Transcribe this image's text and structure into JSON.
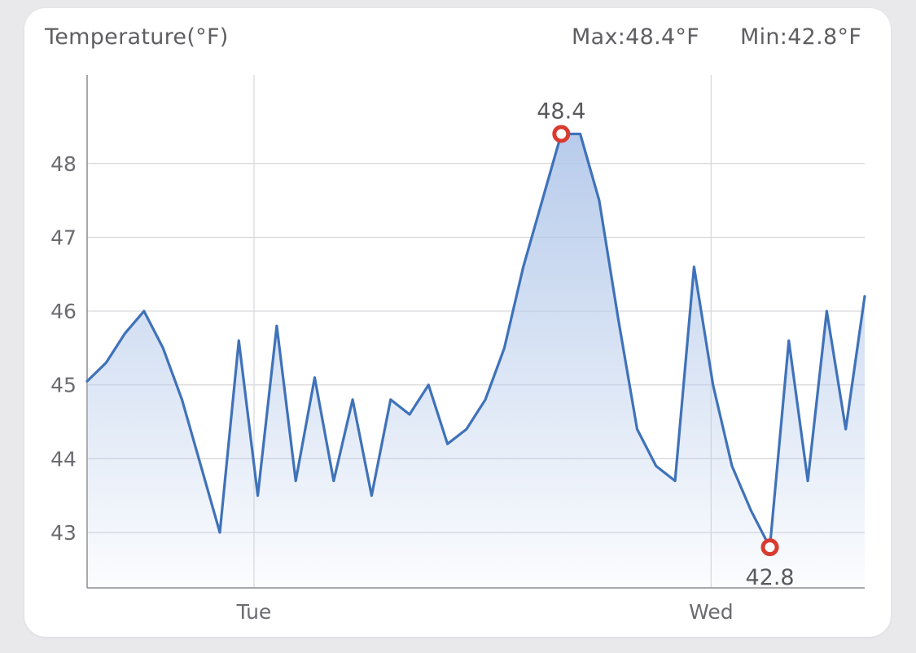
{
  "header": {
    "title": "Temperature(°F)",
    "max_label": "Max:48.4°F",
    "min_label": "Min:42.8°F"
  },
  "chart_data": {
    "type": "area",
    "ylabel": "Temperature(°F)",
    "ylim": [
      42.25,
      49.2
    ],
    "yticks": [
      43,
      44,
      45,
      46,
      47,
      48
    ],
    "xlim": [
      0,
      41
    ],
    "xticks": [
      {
        "x": 8.8,
        "label": "Tue"
      },
      {
        "x": 32.9,
        "label": "Wed"
      }
    ],
    "grid": true,
    "series": [
      {
        "x": [
          0,
          1,
          2,
          3,
          4,
          5,
          6,
          7,
          8,
          9,
          10,
          11,
          12,
          13,
          14,
          15,
          16,
          17,
          18,
          19,
          20,
          21,
          22,
          23,
          24,
          25,
          26,
          27,
          28,
          29,
          30,
          31,
          32,
          33,
          34,
          35,
          36,
          37,
          38,
          39,
          40,
          41
        ],
        "values": [
          45.05,
          45.3,
          45.7,
          46.0,
          45.5,
          44.8,
          43.9,
          43.0,
          45.6,
          43.5,
          45.8,
          43.7,
          45.1,
          43.7,
          44.8,
          43.5,
          44.8,
          44.6,
          45.0,
          44.2,
          44.4,
          44.8,
          45.5,
          46.6,
          47.5,
          48.4,
          48.4,
          47.5,
          45.9,
          44.4,
          43.9,
          43.7,
          46.6,
          45.0,
          43.9,
          43.3,
          42.8,
          45.6,
          43.7,
          46.0,
          44.4,
          46.2
        ]
      }
    ],
    "annotations": [
      {
        "x": 25,
        "y": 48.4,
        "label": "48.4",
        "position": "above"
      },
      {
        "x": 36,
        "y": 42.8,
        "label": "42.8",
        "position": "below"
      }
    ],
    "colors": {
      "line": "#3f72b9",
      "fill_top": "#b4c9ea",
      "marker": "#d93b30",
      "grid": "#d6d6da",
      "axis": "#8a8a8e"
    }
  }
}
